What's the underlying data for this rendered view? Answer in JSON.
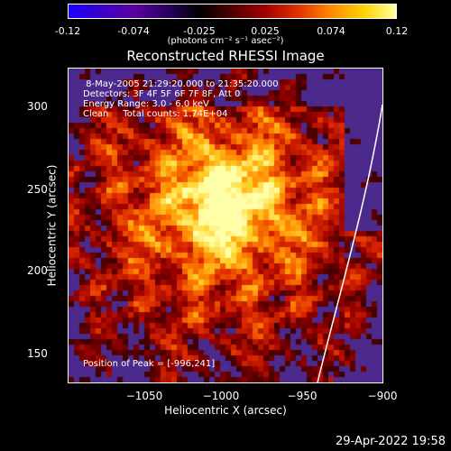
{
  "colorbar": {
    "ticks": [
      "-0.12",
      "-0.074",
      "-0.025",
      "0.025",
      "0.074",
      "0.12"
    ],
    "units": "(photons cm⁻² s⁻¹ asec⁻²)",
    "colors": [
      "#1a00ff",
      "#3a00c8",
      "#5a00a0",
      "#2a0060",
      "#000000",
      "#500000",
      "#a00000",
      "#e03000",
      "#ff8800",
      "#ffd000",
      "#ffffa0"
    ]
  },
  "plot": {
    "title": "Reconstructed RHESSI Image",
    "xlabel": "Heliocentric X (arcsec)",
    "ylabel": "Heliocentric Y (arcsec)",
    "xticks": [
      "−1050",
      "−1000",
      "−950",
      "−900"
    ],
    "yticks": [
      "300",
      "250",
      "200",
      "150"
    ],
    "info": {
      "line1": " 8-May-2005 21:29:20.000 to 21:35:20.000",
      "line2": "Detectors: 3F 4F 5F 6F 7F 8F, Att 0",
      "line3": "Energy Range: 3.0 - 6.0 keV",
      "line4": "Clean     Total counts: 1.74E+04"
    },
    "peak": "Position of Peak = [-996,241]",
    "background_color": "#4b2a8c",
    "limb_color": "#ffffff"
  },
  "footer": {
    "date": "29-Apr-2022 19:58"
  }
}
